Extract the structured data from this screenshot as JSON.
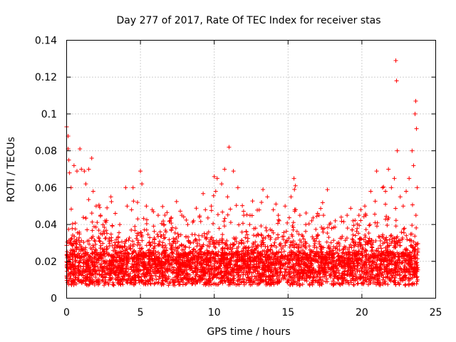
{
  "chart_data": {
    "type": "scatter",
    "title": "Day 277 of 2017, Rate Of TEC Index for receiver stas",
    "xlabel": "GPS time / hours",
    "ylabel": "ROTI / TECUs",
    "xlim": [
      0,
      25
    ],
    "ylim": [
      0,
      0.14
    ],
    "xticks": [
      0,
      5,
      10,
      15,
      20,
      25
    ],
    "yticks": [
      0,
      0.02,
      0.04,
      0.06,
      0.08,
      0.1,
      0.12,
      0.14
    ],
    "xtick_labels": [
      "0",
      "5",
      "10",
      "15",
      "20",
      "25"
    ],
    "ytick_labels": [
      "0",
      "0.02",
      "0.04",
      "0.06",
      "0.08",
      "0.1",
      "0.12",
      "0.14"
    ],
    "grid": true,
    "marker": "+",
    "color": "#ff0000",
    "series": [
      {
        "name": "ROTI",
        "x": [
          0.0,
          0.1,
          0.1,
          0.15,
          0.2,
          0.3,
          0.5,
          0.7,
          0.9,
          1.0,
          1.2,
          1.3,
          1.5,
          1.7,
          1.8,
          2.0,
          2.3,
          2.6,
          3.0,
          3.3,
          3.6,
          4.0,
          4.1,
          4.4,
          4.5,
          4.8,
          5.0,
          5.1,
          5.4,
          5.8,
          6.2,
          6.6,
          7.0,
          7.4,
          7.8,
          8.2,
          8.6,
          9.0,
          9.4,
          9.8,
          10.0,
          10.1,
          10.2,
          10.5,
          10.7,
          10.9,
          11.0,
          11.3,
          11.6,
          12.0,
          12.4,
          12.8,
          13.2,
          13.3,
          13.6,
          14.0,
          14.4,
          14.8,
          15.2,
          15.4,
          15.5,
          15.8,
          16.2,
          16.6,
          17.0,
          17.4,
          17.8,
          18.2,
          18.6,
          19.0,
          19.4,
          19.8,
          20.2,
          20.6,
          21.0,
          21.4,
          21.6,
          21.8,
          22.0,
          22.2,
          22.3,
          22.35,
          22.4,
          22.6,
          22.8,
          23.0,
          23.2,
          23.4,
          23.5,
          23.6,
          23.65,
          23.7,
          23.75
        ],
        "y": [
          0.093,
          0.088,
          0.081,
          0.075,
          0.068,
          0.06,
          0.072,
          0.069,
          0.081,
          0.07,
          0.069,
          0.062,
          0.07,
          0.076,
          0.058,
          0.05,
          0.045,
          0.042,
          0.055,
          0.046,
          0.04,
          0.06,
          0.05,
          0.048,
          0.06,
          0.052,
          0.069,
          0.062,
          0.05,
          0.048,
          0.045,
          0.04,
          0.042,
          0.038,
          0.045,
          0.04,
          0.042,
          0.044,
          0.048,
          0.05,
          0.066,
          0.058,
          0.065,
          0.062,
          0.07,
          0.055,
          0.082,
          0.069,
          0.06,
          0.045,
          0.04,
          0.038,
          0.052,
          0.059,
          0.055,
          0.048,
          0.042,
          0.05,
          0.055,
          0.065,
          0.061,
          0.045,
          0.04,
          0.042,
          0.046,
          0.045,
          0.04,
          0.042,
          0.044,
          0.045,
          0.042,
          0.045,
          0.05,
          0.058,
          0.069,
          0.06,
          0.058,
          0.07,
          0.06,
          0.065,
          0.129,
          0.118,
          0.08,
          0.055,
          0.05,
          0.058,
          0.065,
          0.08,
          0.072,
          0.1,
          0.107,
          0.092,
          0.06
        ]
      }
    ]
  }
}
